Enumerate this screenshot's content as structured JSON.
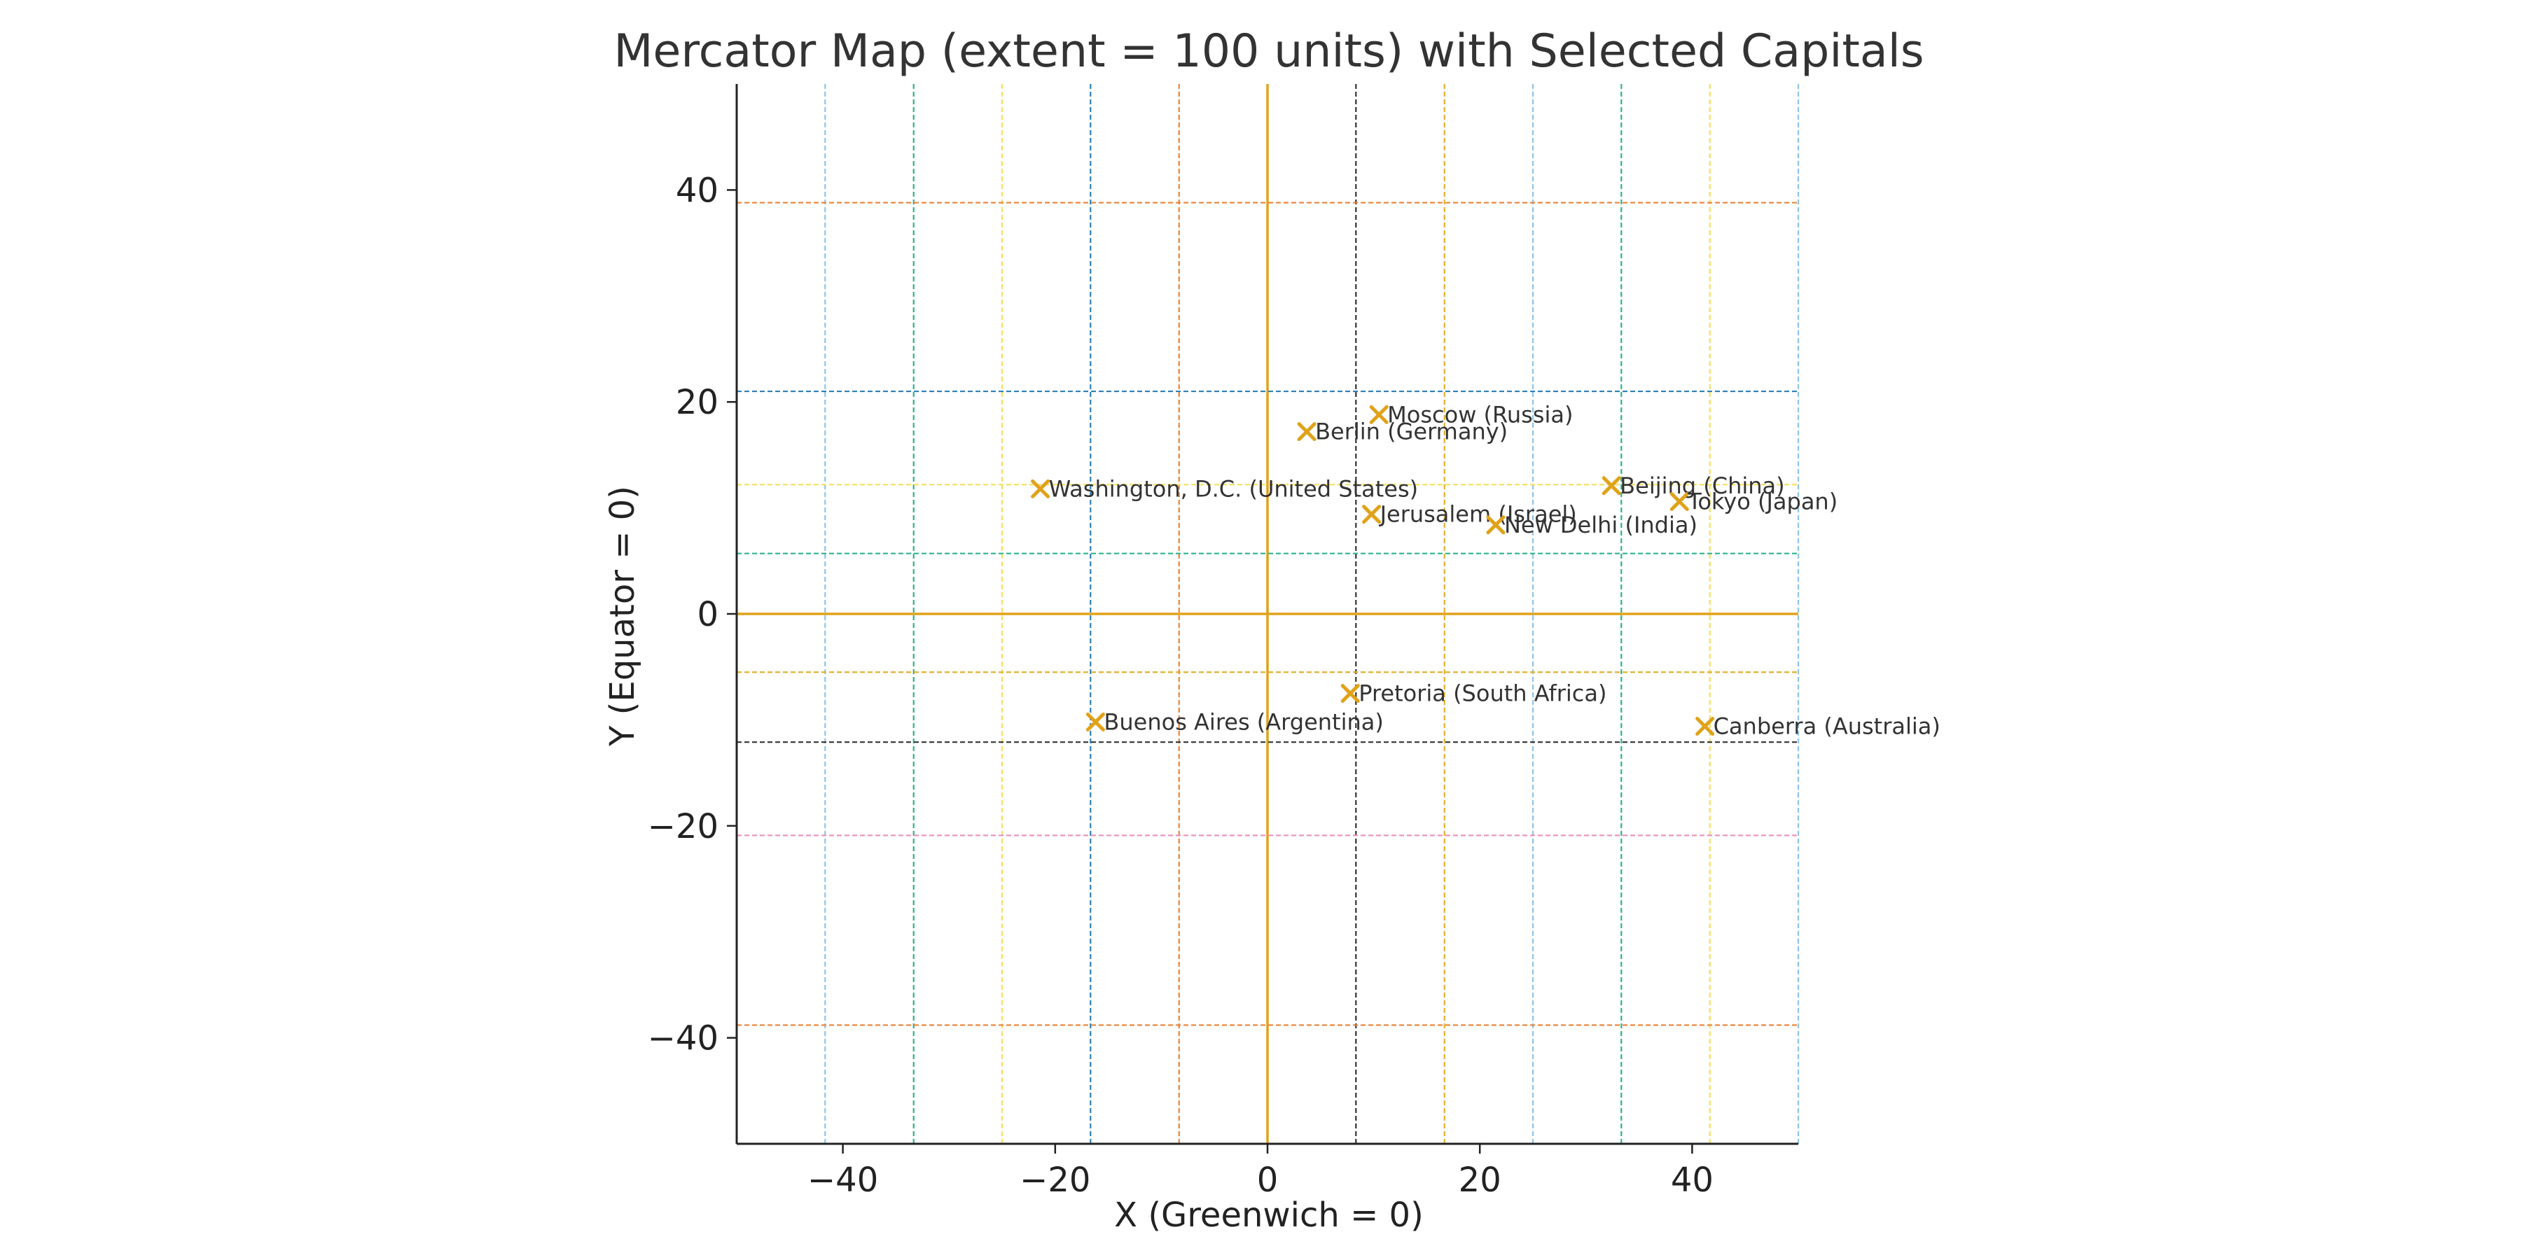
{
  "chart_data": {
    "type": "scatter",
    "title": "Mercator Map (extent = 100 units) with Selected Capitals",
    "xlabel": "X (Greenwich = 0)",
    "ylabel": "Y (Equator = 0)",
    "xlim": [
      -50,
      50
    ],
    "ylim": [
      -50,
      50
    ],
    "xticks": [
      -40,
      -20,
      0,
      20,
      40
    ],
    "yticks": [
      -40,
      -20,
      0,
      20,
      40
    ],
    "tick_labels_x": [
      "−40",
      "−20",
      "0",
      "20",
      "40"
    ],
    "tick_labels_y": [
      "−40",
      "−20",
      "0",
      "20",
      "40"
    ],
    "grid": true,
    "meridians": [
      {
        "x": -41.67,
        "color": "#8fc4e8"
      },
      {
        "x": -33.33,
        "color": "#2db38f"
      },
      {
        "x": -25.0,
        "color": "#f5df5f"
      },
      {
        "x": -16.67,
        "color": "#2f7fb5"
      },
      {
        "x": -8.33,
        "color": "#e8843a"
      },
      {
        "x": 0,
        "color": "#e0a21a",
        "solid": true
      },
      {
        "x": 8.33,
        "color": "#333333"
      },
      {
        "x": 16.67,
        "color": "#e0b030"
      },
      {
        "x": 25.0,
        "color": "#8fc4e8"
      },
      {
        "x": 33.33,
        "color": "#2db38f"
      },
      {
        "x": 41.67,
        "color": "#f5df5f"
      },
      {
        "x": 50.0,
        "color": "#8fc4e8"
      }
    ],
    "parallels": [
      {
        "y": 38.8,
        "color": "#e8843a"
      },
      {
        "y": 21.0,
        "color": "#2f7fb5"
      },
      {
        "y": 12.2,
        "color": "#f5df5f"
      },
      {
        "y": 5.7,
        "color": "#2db38f"
      },
      {
        "y": 0,
        "color": "#e0a21a",
        "solid": true
      },
      {
        "y": -5.5,
        "color": "#e0b030"
      },
      {
        "y": -12.1,
        "color": "#333333"
      },
      {
        "y": -20.9,
        "color": "#e890b8"
      },
      {
        "y": -38.8,
        "color": "#e8843a"
      }
    ],
    "marker_color": "#e0a21a",
    "points": [
      {
        "label": "Moscow (Russia)",
        "x": 10.5,
        "y": 18.8
      },
      {
        "label": "Berlin (Germany)",
        "x": 3.7,
        "y": 17.2
      },
      {
        "label": "Washington, D.C. (United States)",
        "x": -21.4,
        "y": 11.8
      },
      {
        "label": "Beijing (China)",
        "x": 32.4,
        "y": 12.1
      },
      {
        "label": "Tokyo (Japan)",
        "x": 38.8,
        "y": 10.6
      },
      {
        "label": "Jerusalem (Israel)",
        "x": 9.8,
        "y": 9.4
      },
      {
        "label": "New Delhi (India)",
        "x": 21.5,
        "y": 8.4
      },
      {
        "label": "Pretoria (South Africa)",
        "x": 7.8,
        "y": -7.5
      },
      {
        "label": "Buenos Aires (Argentina)",
        "x": -16.2,
        "y": -10.2
      },
      {
        "label": "Canberra (Australia)",
        "x": 41.2,
        "y": -10.6
      }
    ]
  }
}
